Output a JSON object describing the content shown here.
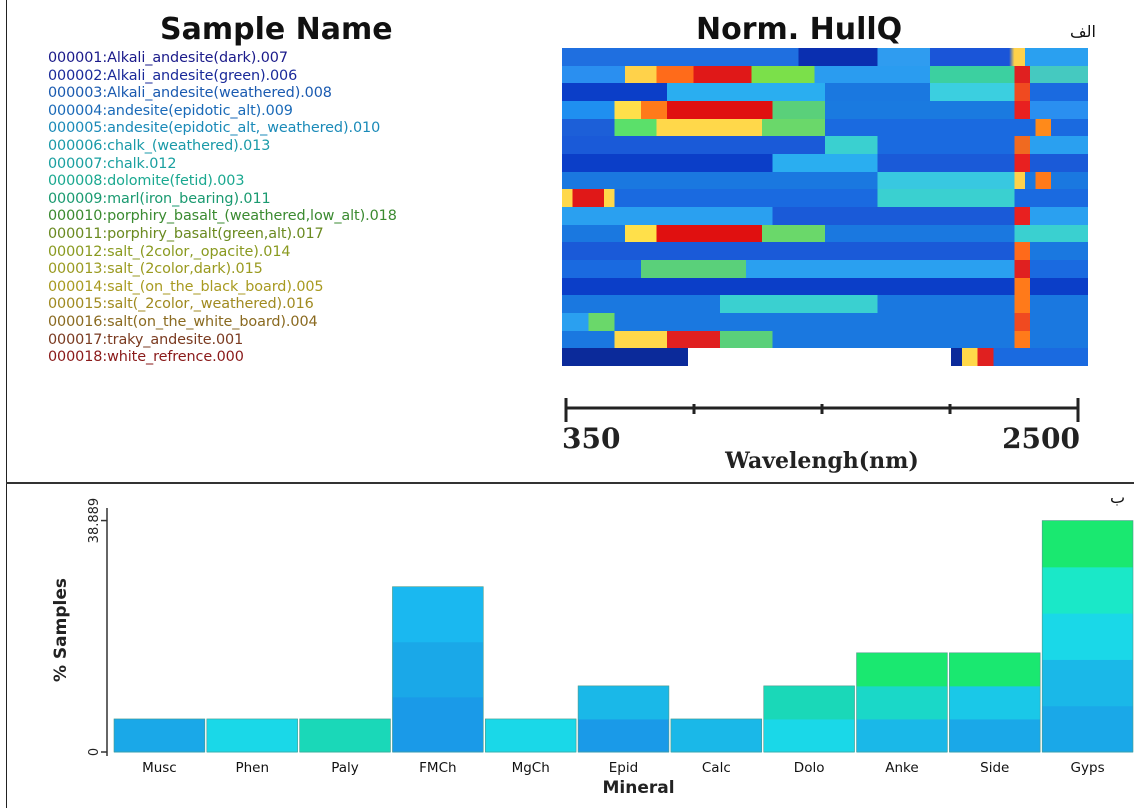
{
  "panel_labels": {
    "top": "الف",
    "bottom": "ب"
  },
  "titles": {
    "sample_name": "Sample Name",
    "hullq": "Norm. HullQ"
  },
  "samples": [
    {
      "label": "000001:Alkali_andesite(dark).007",
      "color": "#1a1a8a",
      "bands": [
        [
          "#1f6fe0",
          0,
          0.45
        ],
        [
          "#0a2fb0",
          0.45,
          0.6
        ],
        [
          "#2f9cf0",
          0.6,
          0.7
        ],
        [
          "#1a55d8",
          0.7,
          0.85
        ],
        [
          "#ffd24a",
          0.86,
          0.88
        ],
        [
          "#2aa0f0",
          0.88,
          1
        ]
      ]
    },
    {
      "label": "000002:Alkali_andesite(green).006",
      "color": "#1a2a9a",
      "bands": [
        [
          "#2a8ff0",
          0,
          0.12
        ],
        [
          "#ffd24a",
          0.12,
          0.18
        ],
        [
          "#ff6b1a",
          0.18,
          0.25
        ],
        [
          "#e01818",
          0.25,
          0.36
        ],
        [
          "#7be04a",
          0.36,
          0.48
        ],
        [
          "#2a9cf0",
          0.48,
          0.7
        ],
        [
          "#3cd0a0",
          0.7,
          0.86
        ],
        [
          "#e02020",
          0.86,
          0.89
        ],
        [
          "#45c9c0",
          0.89,
          1
        ]
      ]
    },
    {
      "label": "000003:Alkali_andesite(weathered).008",
      "color": "#1a5ab0",
      "bands": [
        [
          "#0b3ec8",
          0,
          0.2
        ],
        [
          "#2aaef0",
          0.2,
          0.5
        ],
        [
          "#1a78e0",
          0.5,
          0.7
        ],
        [
          "#3bcfe0",
          0.7,
          0.86
        ],
        [
          "#f04a20",
          0.86,
          0.89
        ],
        [
          "#1a6ae0",
          0.89,
          1
        ]
      ]
    },
    {
      "label": "000004:andesite(epidotic_alt).009",
      "color": "#1a6ab8",
      "bands": [
        [
          "#1f8ff0",
          0,
          0.1
        ],
        [
          "#ffe04a",
          0.1,
          0.15
        ],
        [
          "#ff7a1a",
          0.15,
          0.2
        ],
        [
          "#e01010",
          0.2,
          0.4
        ],
        [
          "#5ad07a",
          0.4,
          0.5
        ],
        [
          "#1a7ae0",
          0.5,
          0.86
        ],
        [
          "#e82020",
          0.86,
          0.89
        ],
        [
          "#2a8ff0",
          0.89,
          1
        ]
      ]
    },
    {
      "label": "000005:andesite(epidotic_alt,_weathered).010",
      "color": "#1a8ab8",
      "bands": [
        [
          "#1c5fd8",
          0,
          0.1
        ],
        [
          "#5be06a",
          0.1,
          0.18
        ],
        [
          "#ffd84a",
          0.18,
          0.38
        ],
        [
          "#6ad86a",
          0.38,
          0.5
        ],
        [
          "#1a6ae0",
          0.5,
          0.9
        ],
        [
          "#ff8a1a",
          0.9,
          0.93
        ],
        [
          "#1a6ae0",
          0.93,
          1
        ]
      ]
    },
    {
      "label": "000006:chalk_(weathered).013",
      "color": "#1a9aa8",
      "bands": [
        [
          "#1a5ad8",
          0,
          0.5
        ],
        [
          "#3ad0d0",
          0.5,
          0.6
        ],
        [
          "#1a6ae0",
          0.6,
          0.86
        ],
        [
          "#f06a20",
          0.86,
          0.89
        ],
        [
          "#2aa0f0",
          0.89,
          1
        ]
      ]
    },
    {
      "label": "000007:chalk.012",
      "color": "#1aa0a0",
      "bands": [
        [
          "#0b3ec8",
          0,
          0.4
        ],
        [
          "#2aaef0",
          0.4,
          0.6
        ],
        [
          "#1a5ad8",
          0.6,
          0.86
        ],
        [
          "#e82020",
          0.86,
          0.89
        ],
        [
          "#1a5ad8",
          0.89,
          1
        ]
      ]
    },
    {
      "label": "000008:dolomite(fetid).003",
      "color": "#1aa890",
      "bands": [
        [
          "#1a78e0",
          0,
          0.6
        ],
        [
          "#38c8e0",
          0.6,
          0.86
        ],
        [
          "#ffd24a",
          0.86,
          0.88
        ],
        [
          "#1a78e0",
          0.88,
          0.9
        ],
        [
          "#ff7a1a",
          0.9,
          0.93
        ],
        [
          "#1a78e0",
          0.93,
          1
        ]
      ]
    },
    {
      "label": "000009:marl(iron_bearing).011",
      "color": "#1a9a70",
      "bands": [
        [
          "#ffd84a",
          0,
          0.02
        ],
        [
          "#e01818",
          0.02,
          0.08
        ],
        [
          "#ffd84a",
          0.08,
          0.1
        ],
        [
          "#1a6ae0",
          0.1,
          0.6
        ],
        [
          "#3ad0d0",
          0.6,
          0.86
        ],
        [
          "#1a6ae0",
          0.86,
          1
        ]
      ]
    },
    {
      "label": "000010:porphiry_basalt_(weathered,low_alt).018",
      "color": "#3a8a30",
      "bands": [
        [
          "#2aa0f0",
          0,
          0.4
        ],
        [
          "#1a5ad8",
          0.4,
          0.86
        ],
        [
          "#e82020",
          0.86,
          0.89
        ],
        [
          "#2aa0f0",
          0.89,
          1
        ]
      ]
    },
    {
      "label": "000011:porphiry_basalt(green,alt).017",
      "color": "#6a8a20",
      "bands": [
        [
          "#1a78e0",
          0,
          0.12
        ],
        [
          "#ffe04a",
          0.12,
          0.18
        ],
        [
          "#e01010",
          0.18,
          0.38
        ],
        [
          "#6ad86a",
          0.38,
          0.5
        ],
        [
          "#1a78e0",
          0.5,
          0.86
        ],
        [
          "#3ad0d0",
          0.86,
          1
        ]
      ]
    },
    {
      "label": "000012:salt_(2color,_opacite).014",
      "color": "#8a9a20",
      "bands": [
        [
          "#1a5ad8",
          0,
          0.86
        ],
        [
          "#ff6a1a",
          0.86,
          0.89
        ],
        [
          "#1a78e0",
          0.89,
          1
        ]
      ]
    },
    {
      "label": "000013:salt_(2color,dark).015",
      "color": "#9a9a20",
      "bands": [
        [
          "#1a6ae0",
          0,
          0.15
        ],
        [
          "#5ad07a",
          0.15,
          0.35
        ],
        [
          "#2aa0f0",
          0.35,
          0.86
        ],
        [
          "#e02020",
          0.86,
          0.89
        ],
        [
          "#1a6ae0",
          0.89,
          1
        ]
      ]
    },
    {
      "label": "000014:salt_(on_the_black_board).005",
      "color": "#a89a20",
      "bands": [
        [
          "#0b3ec8",
          0,
          0.86
        ],
        [
          "#ff7a1a",
          0.86,
          0.89
        ],
        [
          "#0b3ec8",
          0.89,
          1
        ]
      ]
    },
    {
      "label": "000015:salt(_2color,_weathered).016",
      "color": "#a08a20",
      "bands": [
        [
          "#1a78e0",
          0,
          0.3
        ],
        [
          "#3ad0d0",
          0.3,
          0.6
        ],
        [
          "#1a78e0",
          0.6,
          0.86
        ],
        [
          "#ff7a1a",
          0.86,
          0.89
        ],
        [
          "#1a78e0",
          0.89,
          1
        ]
      ]
    },
    {
      "label": "000016:salt(on_the_white_board).004",
      "color": "#8a6a20",
      "bands": [
        [
          "#2aa0f0",
          0,
          0.05
        ],
        [
          "#6ad86a",
          0.05,
          0.1
        ],
        [
          "#1a78e0",
          0.1,
          0.86
        ],
        [
          "#f04a20",
          0.86,
          0.89
        ],
        [
          "#1a78e0",
          0.89,
          1
        ]
      ]
    },
    {
      "label": "000017:traky_andesite.001",
      "color": "#7a3a20",
      "bands": [
        [
          "#1a78e0",
          0,
          0.1
        ],
        [
          "#ffd84a",
          0.1,
          0.2
        ],
        [
          "#e02020",
          0.2,
          0.3
        ],
        [
          "#5ad07a",
          0.3,
          0.4
        ],
        [
          "#1a78e0",
          0.4,
          0.86
        ],
        [
          "#ff7a1a",
          0.86,
          0.89
        ],
        [
          "#1a78e0",
          0.89,
          1
        ]
      ]
    },
    {
      "label": "000018:white_refrence.000",
      "color": "#8a1a1a",
      "bands": [
        [
          "#0b2a9a",
          0,
          0.24
        ],
        [
          "#0b2a9a",
          0.74,
          0.76
        ],
        [
          "#ffd84a",
          0.76,
          0.79
        ],
        [
          "#e02020",
          0.79,
          0.82
        ],
        [
          "#1a6ae0",
          0.82,
          1
        ]
      ],
      "gaps": [
        [
          0.24,
          0.74
        ]
      ]
    }
  ],
  "wavelength_axis": {
    "min_label": "350",
    "max_label": "2500",
    "title": "Wavelengh(nm)",
    "ticks": [
      0,
      0.25,
      0.5,
      0.75,
      1
    ]
  },
  "chart_data": {
    "type": "bar",
    "ylabel": "% Samples",
    "xlabel": "Mineral",
    "ylim": [
      0,
      41
    ],
    "yticks": [
      "0",
      "38.889"
    ],
    "categories": [
      "Musc",
      "Phen",
      "Paly",
      "FMCh",
      "MgCh",
      "Epid",
      "Calc",
      "Dolo",
      "Anke",
      "Side",
      "Gyps"
    ],
    "values": [
      5.556,
      5.556,
      5.556,
      27.778,
      5.556,
      11.111,
      5.556,
      11.111,
      16.667,
      16.667,
      38.889
    ],
    "segment_colors": [
      [
        "#1aa8e8"
      ],
      [
        "#1ad8e8"
      ],
      [
        "#1ad8b8"
      ],
      [
        "#1a9ae8",
        "#1aa8e8",
        "#1ab8f0"
      ],
      [
        "#1ad8e8"
      ],
      [
        "#1a9ae8",
        "#1ab8e8"
      ],
      [
        "#1ab8e8"
      ],
      [
        "#1ad8e8",
        "#1ad8b8"
      ],
      [
        "#1ab8e8",
        "#1ad8c8",
        "#1ae870"
      ],
      [
        "#1aa8e8",
        "#1ac8e8",
        "#1ae870"
      ],
      [
        "#1aa8e8",
        "#1ab8e8",
        "#1ad8e8",
        "#1ae8c8",
        "#1ae870"
      ]
    ]
  }
}
